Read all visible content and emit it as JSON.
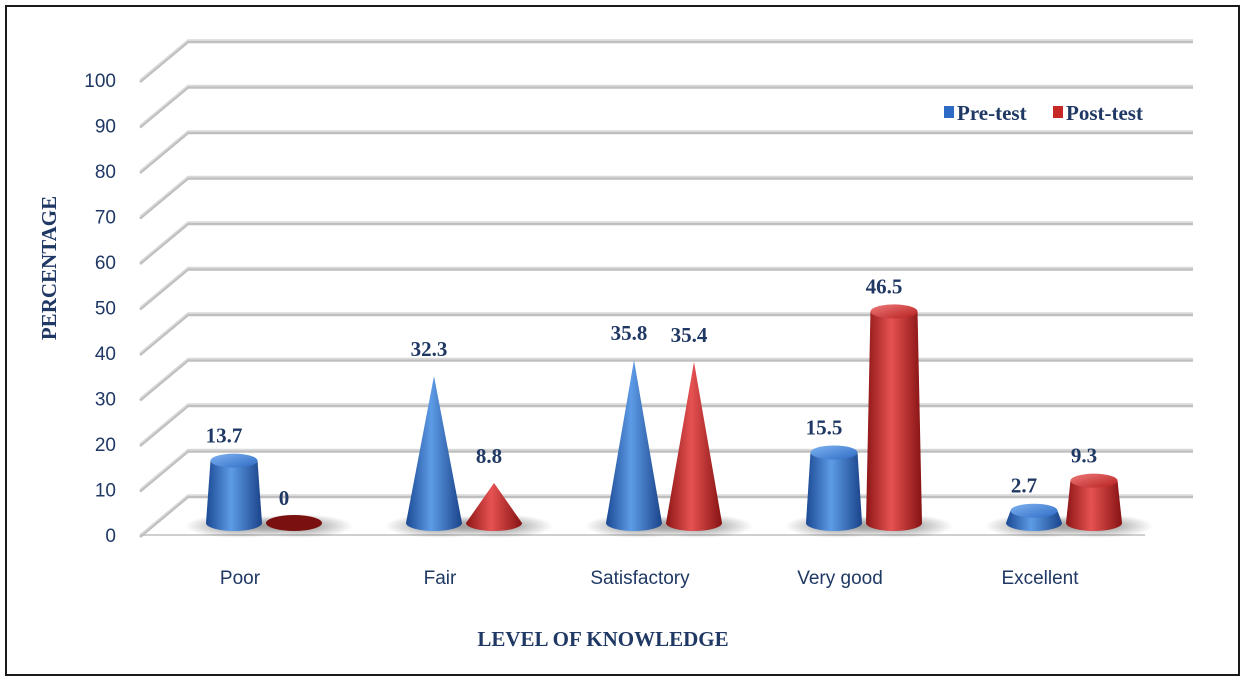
{
  "chart_data": {
    "type": "bar",
    "categories": [
      "Poor",
      "Fair",
      "Satisfactory",
      "Very good",
      "Excellent"
    ],
    "series": [
      {
        "name": "Pre-test",
        "values": [
          13.7,
          32.3,
          35.8,
          15.5,
          2.7
        ],
        "color": "#2e6bc5"
      },
      {
        "name": "Post-test",
        "values": [
          0,
          8.8,
          35.4,
          46.5,
          9.3
        ],
        "color": "#c62828"
      }
    ],
    "data_labels": [
      [
        "13.7",
        "32.3",
        "35.8",
        "15.5",
        "2.7"
      ],
      [
        "0",
        "8.8",
        "35.4",
        "46.5",
        "9.3"
      ]
    ],
    "yticks": [
      "0",
      "10",
      "20",
      "30",
      "40",
      "50",
      "60",
      "70",
      "80",
      "90",
      "100"
    ],
    "ylim": [
      0,
      100
    ],
    "xlabel": "LEVEL OF KNOWLEDGE",
    "ylabel": "PERCENTAGE",
    "legend_position": "top-right",
    "grid": true,
    "shapes": [
      "cylinder",
      "cone",
      "cone",
      "cylinder",
      "cylinder"
    ]
  }
}
